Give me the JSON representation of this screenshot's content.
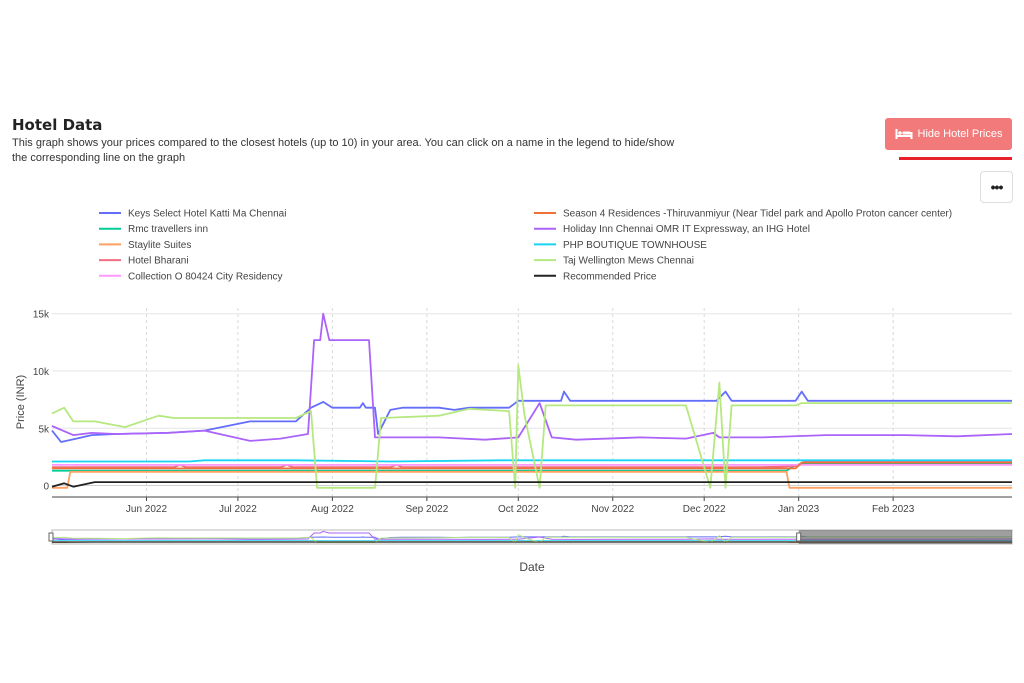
{
  "header": {
    "title": "Hotel Data",
    "description": "This graph shows your prices compared to the closest hotels (up to 10) in your area. You can click on a name in the legend to hide/show the corresponding line on the graph",
    "hide_button_label": "Hide Hotel Prices",
    "hide_button_icon": "bed-icon",
    "menu_button_label": "•••"
  },
  "chart_data": {
    "type": "line",
    "xlabel": "Date",
    "ylabel": "Price (INR)",
    "ylim": [
      -1000,
      15500
    ],
    "yticks": [
      0,
      5000,
      10000,
      15000
    ],
    "ytick_labels": [
      "0",
      "5k",
      "10k",
      "15k"
    ],
    "xlim": [
      "2022-05-01",
      "2023-03-12"
    ],
    "xticks": [
      "2022-06-01",
      "2022-07-01",
      "2022-08-01",
      "2022-09-01",
      "2022-10-01",
      "2022-11-01",
      "2022-12-01",
      "2023-01-01",
      "2023-02-01"
    ],
    "xtick_labels": [
      "Jun 2022",
      "Jul 2022",
      "Aug 2022",
      "Sep 2022",
      "Oct 2022",
      "Nov 2022",
      "Dec 2022",
      "Jan 2023",
      "Feb 2023"
    ],
    "grid": true,
    "legend_position": "top",
    "range_slider": true,
    "series": [
      {
        "name": "Keys Select Hotel Katti Ma Chennai",
        "color": "#636efa",
        "points": [
          [
            "2022-05-01",
            4800
          ],
          [
            "2022-05-04",
            3800
          ],
          [
            "2022-05-09",
            4100
          ],
          [
            "2022-05-14",
            4400
          ],
          [
            "2022-05-22",
            4500
          ],
          [
            "2022-06-08",
            4600
          ],
          [
            "2022-06-20",
            4800
          ],
          [
            "2022-07-05",
            5600
          ],
          [
            "2022-07-20",
            5600
          ],
          [
            "2022-07-25",
            6800
          ],
          [
            "2022-07-29",
            7300
          ],
          [
            "2022-08-01",
            6800
          ],
          [
            "2022-08-10",
            6800
          ],
          [
            "2022-08-11",
            7200
          ],
          [
            "2022-08-12",
            6800
          ],
          [
            "2022-08-15",
            6800
          ],
          [
            "2022-08-16",
            4500
          ],
          [
            "2022-08-20",
            6600
          ],
          [
            "2022-08-24",
            6800
          ],
          [
            "2022-09-05",
            6800
          ],
          [
            "2022-09-10",
            6600
          ],
          [
            "2022-09-15",
            6800
          ],
          [
            "2022-09-28",
            6800
          ],
          [
            "2022-10-01",
            7400
          ],
          [
            "2022-10-15",
            7400
          ],
          [
            "2022-10-16",
            8200
          ],
          [
            "2022-10-18",
            7400
          ],
          [
            "2022-12-05",
            7400
          ],
          [
            "2022-12-08",
            8200
          ],
          [
            "2022-12-10",
            7400
          ],
          [
            "2022-12-31",
            7400
          ],
          [
            "2023-01-02",
            8200
          ],
          [
            "2023-01-04",
            7400
          ],
          [
            "2023-03-12",
            7400
          ]
        ]
      },
      {
        "name": "Rmc travellers inn",
        "color": "#00cc96",
        "points": [
          [
            "2022-05-01",
            1300
          ],
          [
            "2022-06-15",
            1300
          ],
          [
            "2022-08-10",
            1300
          ],
          [
            "2022-09-20",
            1300
          ],
          [
            "2022-10-15",
            1300
          ],
          [
            "2022-11-20",
            1300
          ],
          [
            "2022-12-28",
            1300
          ],
          [
            "2022-12-31",
            1800
          ],
          [
            "2023-01-05",
            1900
          ],
          [
            "2023-03-12",
            1900
          ]
        ]
      },
      {
        "name": "Staylite Suites",
        "color": "#fda062",
        "points": [
          [
            "2022-05-01",
            -200
          ],
          [
            "2022-05-06",
            -200
          ],
          [
            "2022-05-07",
            1200
          ],
          [
            "2022-06-15",
            1200
          ],
          [
            "2022-08-10",
            1200
          ],
          [
            "2022-09-20",
            1200
          ],
          [
            "2022-10-15",
            1200
          ],
          [
            "2022-11-20",
            1200
          ],
          [
            "2022-12-28",
            1200
          ],
          [
            "2022-12-29",
            -200
          ],
          [
            "2023-03-12",
            -200
          ]
        ]
      },
      {
        "name": "Hotel Bharani",
        "color": "#ef6f80",
        "points": [
          [
            "2022-05-01",
            1600
          ],
          [
            "2022-06-10",
            1600
          ],
          [
            "2022-06-12",
            1800
          ],
          [
            "2022-06-14",
            1600
          ],
          [
            "2022-07-15",
            1600
          ],
          [
            "2022-07-17",
            1800
          ],
          [
            "2022-07-19",
            1600
          ],
          [
            "2022-08-20",
            1600
          ],
          [
            "2022-08-22",
            1800
          ],
          [
            "2022-08-24",
            1600
          ],
          [
            "2022-09-20",
            1600
          ],
          [
            "2022-10-20",
            1600
          ],
          [
            "2022-11-20",
            1600
          ],
          [
            "2022-12-20",
            1600
          ],
          [
            "2022-12-31",
            1700
          ],
          [
            "2023-01-03",
            2100
          ],
          [
            "2023-03-12",
            2100
          ]
        ]
      },
      {
        "name": "Collection O 80424 City Residency",
        "color": "#ff97ff",
        "points": [
          [
            "2022-05-01",
            1800
          ],
          [
            "2022-12-31",
            1800
          ],
          [
            "2023-03-12",
            1800
          ]
        ]
      },
      {
        "name": "Season 4 Residences -Thiruvanmiyur (Near Tidel park and Apollo Proton cancer center)",
        "color": "#f0703a",
        "points": [
          [
            "2022-05-01",
            1500
          ],
          [
            "2022-06-20",
            1500
          ],
          [
            "2022-07-30",
            1500
          ],
          [
            "2022-09-10",
            1500
          ],
          [
            "2022-10-20",
            1500
          ],
          [
            "2022-11-30",
            1500
          ],
          [
            "2022-12-31",
            1500
          ],
          [
            "2023-01-02",
            2000
          ],
          [
            "2023-03-12",
            2000
          ]
        ]
      },
      {
        "name": "Holiday Inn Chennai OMR IT Expressway, an IHG Hotel",
        "color": "#ab63fa",
        "points": [
          [
            "2022-05-01",
            5200
          ],
          [
            "2022-05-08",
            4400
          ],
          [
            "2022-05-14",
            4600
          ],
          [
            "2022-05-22",
            4500
          ],
          [
            "2022-06-08",
            4600
          ],
          [
            "2022-06-20",
            4800
          ],
          [
            "2022-07-05",
            3900
          ],
          [
            "2022-07-15",
            4100
          ],
          [
            "2022-07-24",
            4500
          ],
          [
            "2022-07-26",
            12700
          ],
          [
            "2022-07-28",
            12700
          ],
          [
            "2022-07-29",
            15000
          ],
          [
            "2022-07-31",
            12700
          ],
          [
            "2022-08-13",
            12700
          ],
          [
            "2022-08-15",
            4200
          ],
          [
            "2022-09-05",
            4200
          ],
          [
            "2022-09-20",
            4000
          ],
          [
            "2022-10-01",
            4200
          ],
          [
            "2022-10-08",
            7200
          ],
          [
            "2022-10-12",
            4200
          ],
          [
            "2022-10-20",
            4000
          ],
          [
            "2022-11-10",
            4200
          ],
          [
            "2022-11-25",
            4100
          ],
          [
            "2022-12-04",
            4600
          ],
          [
            "2022-12-06",
            4200
          ],
          [
            "2022-12-20",
            4200
          ],
          [
            "2023-01-10",
            4400
          ],
          [
            "2023-02-05",
            4400
          ],
          [
            "2023-02-22",
            4300
          ],
          [
            "2023-03-12",
            4500
          ]
        ]
      },
      {
        "name": "PHP BOUTIQUE TOWNHOUSE",
        "color": "#19d3f3",
        "points": [
          [
            "2022-05-01",
            2100
          ],
          [
            "2022-06-15",
            2100
          ],
          [
            "2022-06-20",
            2200
          ],
          [
            "2022-07-20",
            2200
          ],
          [
            "2022-08-20",
            2100
          ],
          [
            "2022-09-25",
            2200
          ],
          [
            "2022-10-20",
            2200
          ],
          [
            "2022-11-20",
            2200
          ],
          [
            "2022-12-20",
            2200
          ],
          [
            "2023-01-20",
            2200
          ],
          [
            "2023-03-12",
            2200
          ]
        ]
      },
      {
        "name": "Taj Wellington Mews Chennai",
        "color": "#b6e880",
        "points": [
          [
            "2022-05-01",
            6300
          ],
          [
            "2022-05-05",
            6800
          ],
          [
            "2022-05-08",
            5600
          ],
          [
            "2022-05-15",
            5600
          ],
          [
            "2022-05-25",
            5100
          ],
          [
            "2022-06-05",
            6100
          ],
          [
            "2022-06-10",
            5900
          ],
          [
            "2022-06-20",
            5900
          ],
          [
            "2022-07-20",
            5900
          ],
          [
            "2022-07-25",
            6500
          ],
          [
            "2022-07-27",
            -200
          ],
          [
            "2022-08-15",
            -200
          ],
          [
            "2022-08-17",
            5900
          ],
          [
            "2022-09-05",
            6100
          ],
          [
            "2022-09-15",
            6700
          ],
          [
            "2022-09-28",
            6500
          ],
          [
            "2022-09-30",
            -200
          ],
          [
            "2022-10-01",
            10500
          ],
          [
            "2022-10-03",
            6200
          ],
          [
            "2022-10-08",
            -200
          ],
          [
            "2022-10-10",
            7000
          ],
          [
            "2022-11-10",
            7000
          ],
          [
            "2022-11-25",
            7000
          ],
          [
            "2022-12-03",
            -200
          ],
          [
            "2022-12-06",
            9000
          ],
          [
            "2022-12-08",
            -200
          ],
          [
            "2022-12-10",
            7000
          ],
          [
            "2022-12-31",
            7000
          ],
          [
            "2023-01-02",
            7200
          ],
          [
            "2023-03-12",
            7200
          ]
        ]
      },
      {
        "name": "Recommended Price",
        "color": "#222222",
        "points": [
          [
            "2022-05-01",
            -100
          ],
          [
            "2022-05-05",
            200
          ],
          [
            "2022-05-08",
            -100
          ],
          [
            "2022-05-15",
            300
          ],
          [
            "2022-06-15",
            300
          ],
          [
            "2022-07-20",
            300
          ],
          [
            "2022-09-20",
            300
          ],
          [
            "2022-10-20",
            300
          ],
          [
            "2022-11-20",
            300
          ],
          [
            "2022-12-20",
            300
          ],
          [
            "2023-01-20",
            300
          ],
          [
            "2023-03-12",
            300
          ]
        ]
      }
    ]
  }
}
